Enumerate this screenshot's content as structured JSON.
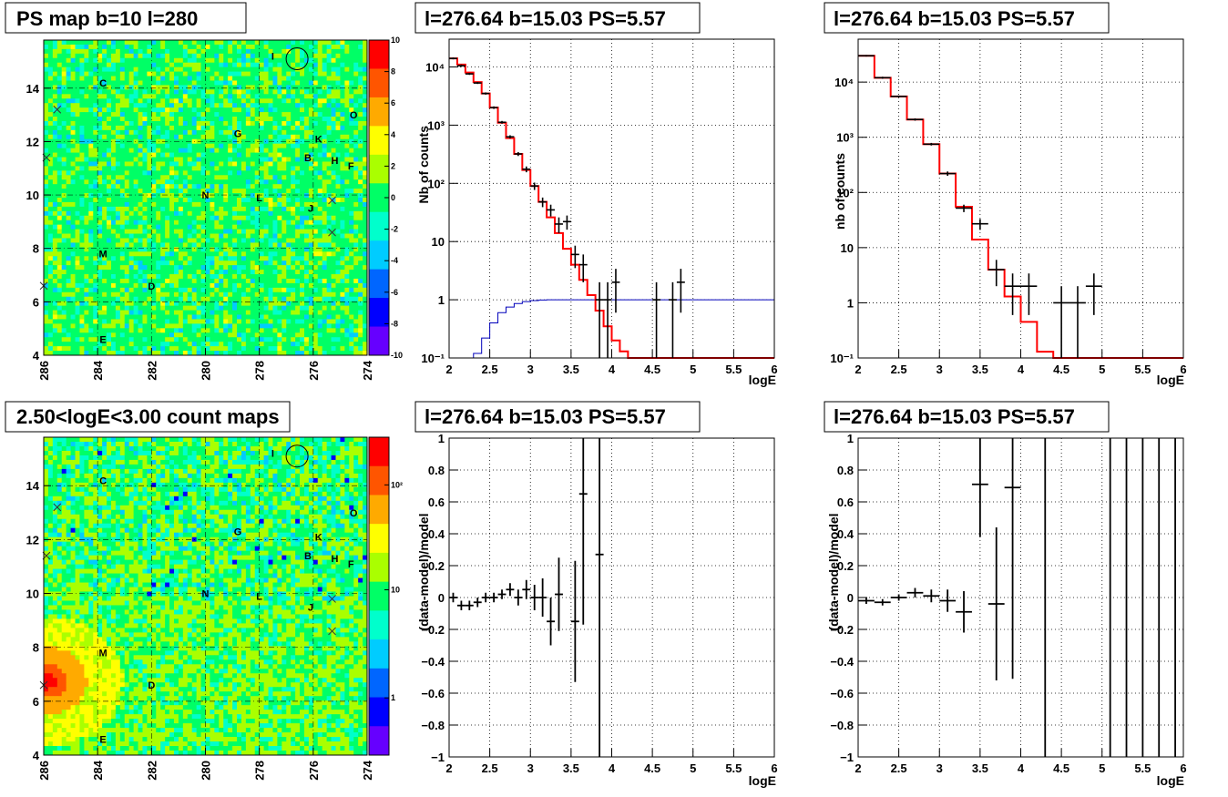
{
  "chart_data": [
    {
      "id": "ps-map",
      "type": "heatmap",
      "title": "PS map b=10 l=280",
      "x_ticks": [
        "286",
        "284",
        "282",
        "280",
        "278",
        "276",
        "274"
      ],
      "x_range": [
        286,
        274
      ],
      "y_ticks": [
        "4",
        "6",
        "8",
        "10",
        "12",
        "14"
      ],
      "y_range": [
        4,
        15.8
      ],
      "colorbar_ticks": [
        "10",
        "8",
        "6",
        "4",
        "2",
        "0",
        "-2",
        "-4",
        "-6",
        "-8",
        "-10"
      ],
      "colorbar_range": [
        -10,
        10
      ],
      "colors": [
        "#ff0000",
        "#ff5500",
        "#ffaa00",
        "#ffff00",
        "#aaff00",
        "#00ff66",
        "#00ffcc",
        "#00ccff",
        "#0066ff",
        "#0000ff",
        "#6600ff"
      ],
      "sources": [
        {
          "label": "C",
          "l": 283.8,
          "b": 14.2
        },
        {
          "label": "I",
          "l": 277.5,
          "b": 15.2
        },
        {
          "label": "O",
          "l": 274.5,
          "b": 13.0
        },
        {
          "label": "G",
          "l": 278.8,
          "b": 12.3
        },
        {
          "label": "K",
          "l": 275.8,
          "b": 12.1
        },
        {
          "label": "B",
          "l": 276.2,
          "b": 11.4
        },
        {
          "label": "H",
          "l": 275.2,
          "b": 11.3
        },
        {
          "label": "F",
          "l": 274.6,
          "b": 11.1
        },
        {
          "label": "N",
          "l": 280.0,
          "b": 10.0
        },
        {
          "label": "L",
          "l": 278.0,
          "b": 9.9
        },
        {
          "label": "J",
          "l": 276.1,
          "b": 9.5
        },
        {
          "label": "M",
          "l": 283.8,
          "b": 7.8
        },
        {
          "label": "D",
          "l": 282.0,
          "b": 6.6
        },
        {
          "label": "E",
          "l": 283.8,
          "b": 4.6
        }
      ],
      "crosses": [
        {
          "l": 285.5,
          "b": 13.2
        },
        {
          "l": 285.9,
          "b": 11.4
        },
        {
          "l": 275.3,
          "b": 9.8
        },
        {
          "l": 275.3,
          "b": 8.6
        },
        {
          "l": 286.0,
          "b": 6.6
        }
      ],
      "circle": {
        "l": 276.6,
        "b": 15.1
      }
    },
    {
      "id": "spectrum-1",
      "type": "line",
      "title": "l=276.64 b=15.03 PS=5.57",
      "xlabel": "logE",
      "ylabel": "Nb of counts",
      "x_ticks": [
        "2",
        "2.5",
        "3",
        "3.5",
        "4",
        "4.5",
        "5",
        "5.5",
        "6"
      ],
      "x_range": [
        2,
        6
      ],
      "y_scale": "log",
      "y_range": [
        0.1,
        30000
      ],
      "y_ticks": [
        {
          "v": 0.1,
          "label": "10⁻¹"
        },
        {
          "v": 1,
          "label": "1"
        },
        {
          "v": 10,
          "label": "10"
        },
        {
          "v": 100,
          "label": "10²"
        },
        {
          "v": 1000,
          "label": "10³"
        },
        {
          "v": 10000,
          "label": "10⁴"
        }
      ],
      "model_edges": [
        2,
        2.1,
        2.2,
        2.3,
        2.4,
        2.5,
        2.6,
        2.7,
        2.8,
        2.9,
        3.0,
        3.1,
        3.2,
        3.3,
        3.4,
        3.5,
        3.6,
        3.7,
        3.8,
        3.9,
        4.0,
        4.1,
        4.2,
        4.3,
        4.4,
        4.5,
        4.6,
        4.7,
        4.8,
        4.9,
        5.0,
        5.1,
        5.2,
        5.3,
        5.4,
        5.5,
        5.6,
        5.7,
        5.8,
        5.9,
        6.0
      ],
      "model_values": [
        14000,
        11000,
        8000,
        5500,
        3500,
        2000,
        1100,
        600,
        320,
        170,
        90,
        48,
        26,
        14,
        7.5,
        4,
        2.2,
        1.2,
        0.65,
        0.35,
        0.2,
        0.13,
        0.1,
        0.1,
        0.1,
        0.1,
        0.1,
        0.1,
        0.1,
        0.1,
        0.1,
        0.1,
        0.1,
        0.1,
        0.1,
        0.1,
        0.1,
        0.1,
        0.1,
        0.1
      ],
      "acceptance_edges": [
        2.2,
        2.3,
        2.4,
        2.5,
        2.6,
        2.7,
        2.8,
        2.9,
        3.0,
        3.1,
        3.2,
        3.3,
        3.4,
        3.5,
        6.0
      ],
      "acceptance_values": [
        0.1,
        0.12,
        0.22,
        0.4,
        0.6,
        0.75,
        0.86,
        0.93,
        0.97,
        0.99,
        1.0,
        1.0,
        1.0,
        1.0
      ],
      "data": [
        {
          "x": 2.05,
          "y": 14000,
          "lo": 13500,
          "hi": 14500,
          "w": 0.05
        },
        {
          "x": 2.15,
          "y": 10500,
          "lo": 10000,
          "hi": 11000,
          "w": 0.05
        },
        {
          "x": 2.25,
          "y": 7600,
          "lo": 7300,
          "hi": 7900,
          "w": 0.05
        },
        {
          "x": 2.35,
          "y": 5300,
          "lo": 5100,
          "hi": 5500,
          "w": 0.05
        },
        {
          "x": 2.45,
          "y": 3500,
          "lo": 3350,
          "hi": 3650,
          "w": 0.05
        },
        {
          "x": 2.55,
          "y": 2000,
          "lo": 1900,
          "hi": 2100,
          "w": 0.05
        },
        {
          "x": 2.65,
          "y": 1120,
          "lo": 1060,
          "hi": 1180,
          "w": 0.05
        },
        {
          "x": 2.75,
          "y": 630,
          "lo": 590,
          "hi": 670,
          "w": 0.05
        },
        {
          "x": 2.85,
          "y": 320,
          "lo": 295,
          "hi": 345,
          "w": 0.05
        },
        {
          "x": 2.95,
          "y": 175,
          "lo": 155,
          "hi": 195,
          "w": 0.05
        },
        {
          "x": 3.05,
          "y": 90,
          "lo": 77,
          "hi": 103,
          "w": 0.05
        },
        {
          "x": 3.15,
          "y": 48,
          "lo": 39,
          "hi": 57,
          "w": 0.05
        },
        {
          "x": 3.25,
          "y": 35,
          "lo": 27,
          "hi": 43,
          "w": 0.05
        },
        {
          "x": 3.35,
          "y": 20,
          "lo": 14,
          "hi": 26,
          "w": 0.05
        },
        {
          "x": 3.45,
          "y": 22,
          "lo": 16,
          "hi": 28,
          "w": 0.05
        },
        {
          "x": 3.55,
          "y": 6,
          "lo": 3.5,
          "hi": 8.5,
          "w": 0.05
        },
        {
          "x": 3.65,
          "y": 4,
          "lo": 2,
          "hi": 6,
          "w": 0.05
        },
        {
          "x": 3.85,
          "y": 1,
          "lo": 0.1,
          "hi": 2,
          "w": 0.05
        },
        {
          "x": 3.95,
          "y": 1,
          "lo": 0.1,
          "hi": 2,
          "w": 0.05
        },
        {
          "x": 4.05,
          "y": 2,
          "lo": 0.6,
          "hi": 3.4,
          "w": 0.05
        },
        {
          "x": 4.55,
          "y": 1,
          "lo": 0.1,
          "hi": 2,
          "w": 0.05
        },
        {
          "x": 4.75,
          "y": 1,
          "lo": 0.1,
          "hi": 2,
          "w": 0.05
        },
        {
          "x": 4.85,
          "y": 2,
          "lo": 0.6,
          "hi": 3.4,
          "w": 0.05
        }
      ]
    },
    {
      "id": "spectrum-2",
      "type": "line",
      "title": "l=276.64 b=15.03 PS=5.57",
      "xlabel": "logE",
      "ylabel": "nb of counts",
      "x_ticks": [
        "2",
        "2.5",
        "3",
        "3.5",
        "4",
        "4.5",
        "5",
        "5.5",
        "6"
      ],
      "x_range": [
        2,
        6
      ],
      "y_scale": "log",
      "y_range": [
        0.1,
        60000
      ],
      "y_ticks": [
        {
          "v": 0.1,
          "label": "10⁻¹"
        },
        {
          "v": 1,
          "label": "1"
        },
        {
          "v": 10,
          "label": "10"
        },
        {
          "v": 100,
          "label": "10²"
        },
        {
          "v": 1000,
          "label": "10³"
        },
        {
          "v": 10000,
          "label": "10⁴"
        }
      ],
      "model_edges": [
        2,
        2.2,
        2.4,
        2.6,
        2.8,
        3.0,
        3.2,
        3.4,
        3.6,
        3.8,
        4.0,
        4.2,
        4.4,
        4.6,
        4.8,
        5.0,
        5.2,
        5.4,
        5.6,
        5.8,
        6.0
      ],
      "model_values": [
        30000,
        12000,
        5500,
        2100,
        750,
        220,
        55,
        14,
        4,
        1.3,
        0.45,
        0.13,
        0.1,
        0.1,
        0.1,
        0.1,
        0.1,
        0.1,
        0.1,
        0.1
      ],
      "acceptance_edges": [],
      "acceptance_values": [],
      "data": [
        {
          "x": 2.1,
          "y": 30000,
          "lo": 29000,
          "hi": 31000,
          "w": 0.1
        },
        {
          "x": 2.3,
          "y": 12000,
          "lo": 11500,
          "hi": 12500,
          "w": 0.1
        },
        {
          "x": 2.5,
          "y": 5500,
          "lo": 5300,
          "hi": 5700,
          "w": 0.1
        },
        {
          "x": 2.7,
          "y": 2100,
          "lo": 2000,
          "hi": 2200,
          "w": 0.1
        },
        {
          "x": 2.9,
          "y": 750,
          "lo": 710,
          "hi": 790,
          "w": 0.1
        },
        {
          "x": 3.1,
          "y": 220,
          "lo": 200,
          "hi": 240,
          "w": 0.1
        },
        {
          "x": 3.3,
          "y": 52,
          "lo": 44,
          "hi": 60,
          "w": 0.1
        },
        {
          "x": 3.5,
          "y": 27,
          "lo": 21,
          "hi": 33,
          "w": 0.1
        },
        {
          "x": 3.7,
          "y": 4,
          "lo": 2,
          "hi": 6,
          "w": 0.1
        },
        {
          "x": 3.9,
          "y": 2,
          "lo": 0.6,
          "hi": 3.4,
          "w": 0.1
        },
        {
          "x": 4.1,
          "y": 2,
          "lo": 0.6,
          "hi": 3.4,
          "w": 0.1
        },
        {
          "x": 4.5,
          "y": 1,
          "lo": 0.1,
          "hi": 2,
          "w": 0.1
        },
        {
          "x": 4.7,
          "y": 1,
          "lo": 0.1,
          "hi": 2,
          "w": 0.1
        },
        {
          "x": 4.9,
          "y": 2,
          "lo": 0.6,
          "hi": 3.4,
          "w": 0.1
        }
      ]
    },
    {
      "id": "count-map",
      "type": "heatmap",
      "title": "2.50<logE<3.00 count maps",
      "x_ticks": [
        "286",
        "284",
        "282",
        "280",
        "278",
        "276",
        "274"
      ],
      "x_range": [
        286,
        274
      ],
      "y_ticks": [
        "4",
        "6",
        "8",
        "10",
        "12",
        "14"
      ],
      "y_range": [
        4,
        15.8
      ],
      "colorbar_ticks": [
        "10²",
        "10",
        "1"
      ],
      "colorbar_scale": "log",
      "colors": [
        "#ff0000",
        "#ff5500",
        "#ffaa00",
        "#ffff00",
        "#aaff00",
        "#00ff66",
        "#00ffcc",
        "#00ccff",
        "#0066ff",
        "#0000ff",
        "#6600ff"
      ],
      "sources": [
        {
          "label": "C",
          "l": 283.8,
          "b": 14.2
        },
        {
          "label": "I",
          "l": 277.5,
          "b": 15.2
        },
        {
          "label": "O",
          "l": 274.5,
          "b": 13.0
        },
        {
          "label": "G",
          "l": 278.8,
          "b": 12.3
        },
        {
          "label": "K",
          "l": 275.8,
          "b": 12.1
        },
        {
          "label": "B",
          "l": 276.2,
          "b": 11.4
        },
        {
          "label": "H",
          "l": 275.2,
          "b": 11.3
        },
        {
          "label": "F",
          "l": 274.6,
          "b": 11.1
        },
        {
          "label": "N",
          "l": 280.0,
          "b": 10.0
        },
        {
          "label": "L",
          "l": 278.0,
          "b": 9.9
        },
        {
          "label": "J",
          "l": 276.1,
          "b": 9.5
        },
        {
          "label": "M",
          "l": 283.8,
          "b": 7.8
        },
        {
          "label": "D",
          "l": 282.0,
          "b": 6.6
        },
        {
          "label": "E",
          "l": 283.8,
          "b": 4.6
        }
      ],
      "crosses": [
        {
          "l": 285.5,
          "b": 13.2
        },
        {
          "l": 285.9,
          "b": 11.4
        },
        {
          "l": 275.3,
          "b": 9.8
        },
        {
          "l": 275.3,
          "b": 8.6
        },
        {
          "l": 286.0,
          "b": 6.6
        }
      ],
      "circle": {
        "l": 276.6,
        "b": 15.1
      }
    },
    {
      "id": "residual-1",
      "type": "scatter",
      "title": "l=276.64 b=15.03 PS=5.57",
      "xlabel": "logE",
      "ylabel": "(data-model)/model",
      "x_ticks": [
        "2",
        "2.5",
        "3",
        "3.5",
        "4",
        "4.5",
        "5",
        "5.5",
        "6"
      ],
      "x_range": [
        2,
        6
      ],
      "y_range": [
        -1,
        1
      ],
      "y_ticks": [
        "-1",
        "-0.8",
        "-0.6",
        "-0.4",
        "-0.2",
        "0",
        "0.2",
        "0.4",
        "0.6",
        "0.8",
        "1"
      ],
      "data": [
        {
          "x": 2.05,
          "y": 0.0,
          "e": 0.03,
          "w": 0.05
        },
        {
          "x": 2.15,
          "y": -0.05,
          "e": 0.03,
          "w": 0.05
        },
        {
          "x": 2.25,
          "y": -0.05,
          "e": 0.03,
          "w": 0.05
        },
        {
          "x": 2.35,
          "y": -0.03,
          "e": 0.03,
          "w": 0.05
        },
        {
          "x": 2.45,
          "y": 0.0,
          "e": 0.03,
          "w": 0.05
        },
        {
          "x": 2.55,
          "y": 0.0,
          "e": 0.03,
          "w": 0.05
        },
        {
          "x": 2.65,
          "y": 0.02,
          "e": 0.03,
          "w": 0.05
        },
        {
          "x": 2.75,
          "y": 0.05,
          "e": 0.04,
          "w": 0.05
        },
        {
          "x": 2.85,
          "y": 0.0,
          "e": 0.05,
          "w": 0.05
        },
        {
          "x": 2.95,
          "y": 0.05,
          "e": 0.06,
          "w": 0.05
        },
        {
          "x": 3.05,
          "y": 0.0,
          "e": 0.08,
          "w": 0.05
        },
        {
          "x": 3.15,
          "y": 0.0,
          "e": 0.12,
          "w": 0.05
        },
        {
          "x": 3.25,
          "y": -0.15,
          "e": 0.15,
          "w": 0.05
        },
        {
          "x": 3.35,
          "y": 0.02,
          "e": 0.23,
          "w": 0.05
        },
        {
          "x": 3.55,
          "y": -0.15,
          "e": 0.38,
          "w": 0.05
        },
        {
          "x": 3.65,
          "y": 0.65,
          "e": 0.82,
          "w": 0.05
        },
        {
          "x": 3.85,
          "y": 0.27,
          "e": 1.4,
          "w": 0.05
        }
      ]
    },
    {
      "id": "residual-2",
      "type": "scatter",
      "title": "l=276.64 b=15.03 PS=5.57",
      "xlabel": "logE",
      "ylabel": "(data-model)/model",
      "x_ticks": [
        "2",
        "2.5",
        "3",
        "3.5",
        "4",
        "4.5",
        "5",
        "5.5",
        "6"
      ],
      "x_range": [
        2,
        6
      ],
      "y_range": [
        -1,
        1
      ],
      "y_ticks": [
        "-1",
        "-0.8",
        "-0.6",
        "-0.4",
        "-0.2",
        "0",
        "0.2",
        "0.4",
        "0.6",
        "0.8",
        "1"
      ],
      "data": [
        {
          "x": 2.1,
          "y": -0.02,
          "e": 0.02,
          "w": 0.1
        },
        {
          "x": 2.3,
          "y": -0.03,
          "e": 0.02,
          "w": 0.1
        },
        {
          "x": 2.5,
          "y": 0.0,
          "e": 0.02,
          "w": 0.1
        },
        {
          "x": 2.7,
          "y": 0.03,
          "e": 0.03,
          "w": 0.1
        },
        {
          "x": 2.9,
          "y": 0.01,
          "e": 0.04,
          "w": 0.1
        },
        {
          "x": 3.1,
          "y": -0.02,
          "e": 0.07,
          "w": 0.1
        },
        {
          "x": 3.3,
          "y": -0.09,
          "e": 0.13,
          "w": 0.1
        },
        {
          "x": 3.5,
          "y": 0.71,
          "e": 0.33,
          "w": 0.1
        },
        {
          "x": 3.7,
          "y": -0.04,
          "e": 0.48,
          "w": 0.1
        },
        {
          "x": 3.9,
          "y": 0.69,
          "e": 1.2,
          "w": 0.1
        },
        {
          "x": 4.3,
          "y": 0,
          "e": 2,
          "w": 0
        },
        {
          "x": 5.1,
          "y": 0,
          "e": 2,
          "w": 0
        },
        {
          "x": 5.3,
          "y": 0,
          "e": 2,
          "w": 0
        },
        {
          "x": 5.5,
          "y": 0,
          "e": 2,
          "w": 0
        },
        {
          "x": 5.7,
          "y": 0,
          "e": 2,
          "w": 0
        },
        {
          "x": 5.9,
          "y": 0,
          "e": 2,
          "w": 0
        }
      ]
    }
  ]
}
